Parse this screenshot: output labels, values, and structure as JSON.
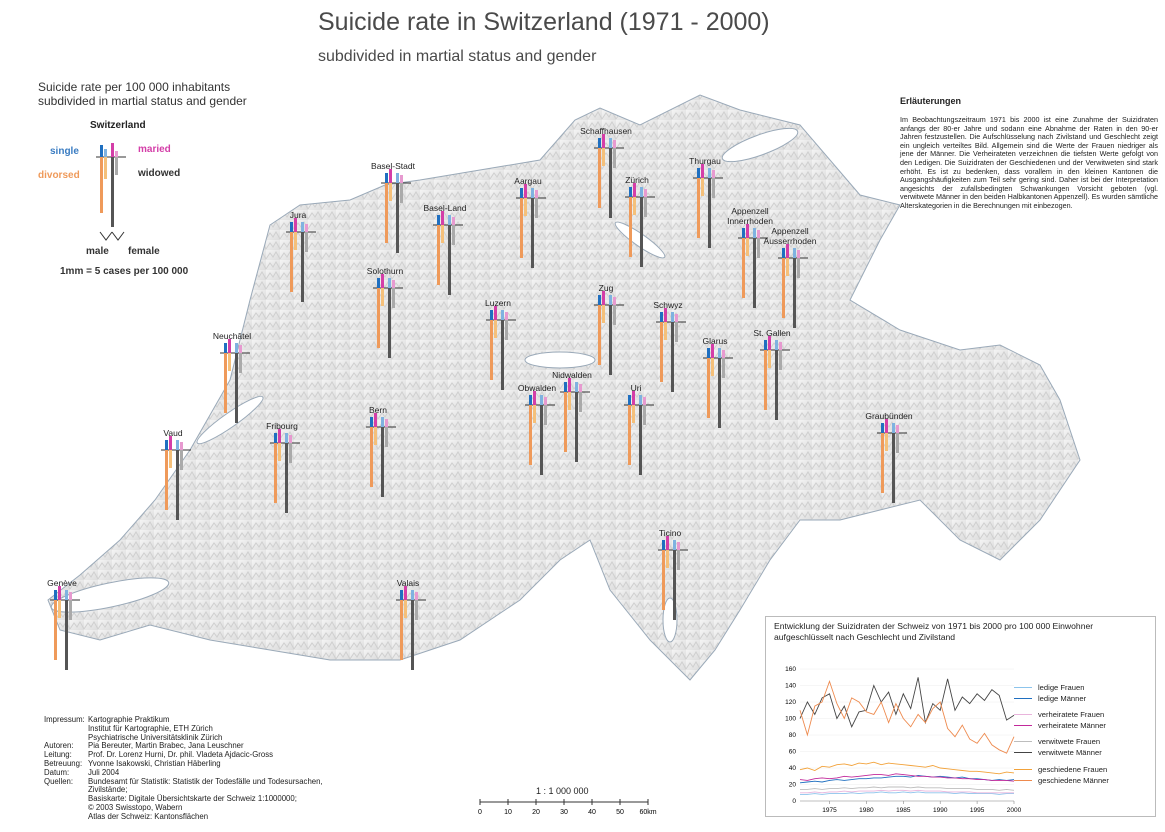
{
  "title": "Suicide rate in Switzerland (1971 - 2000)",
  "subtitle": "subdivided in martial status and gender",
  "legend": {
    "title_line1": "Suicide rate per 100 000 inhabitants",
    "title_line2": "subdivided in martial status and gender",
    "region": "Switzerland",
    "single": "single",
    "married": "maried",
    "divorced": "divorsed",
    "widowed": "widowed",
    "male": "male",
    "female": "female",
    "scale_note": "1mm = 5 cases per 100 000",
    "colors": {
      "single": "#1f6fc0",
      "married": "#d43ea8",
      "divorced": "#ef9a5a",
      "widowed": "#555555",
      "single_f": "#7fb2e0",
      "married_f": "#e79ad0",
      "divorced_f": "#f5c07a",
      "widowed_f": "#aaaaaa"
    }
  },
  "explanation": {
    "heading": "Erläuterungen",
    "text": "Im Beobachtungszeitraum 1971 bis 2000 ist eine Zunahme der Suizidraten anfangs der 80-er Jahre und sodann eine Abnahme der Raten in den 90-er Jahren festzustellen. Die Aufschlüsselung nach Zivilstand und Geschlecht zeigt ein ungleich verteiltes Bild. Allgemein sind die Werte der Frauen niedriger als jene der Männer. Die Verheirateten verzeichnen die tiefsten Werte gefolgt von den Ledigen. Die Suizidraten der Geschiedenen und der Verwitweten sind stark erhöht. Es ist zu bedenken, dass vorallem in den kleinen Kantonen die Ausgangshäufigkeiten zum Teil sehr gering sind. Daher ist bei der Interpretation angesichts der zufallsbedingten Schwankungen Vorsicht geboten (vgl. verwitwete Männer in den beiden Halbkantonen Appenzell). Es wurden sämtliche Alterskategorien in die Berechnungen mit einbezogen."
  },
  "cantons": [
    {
      "name": "Schaffhausen"
    },
    {
      "name": "Basel-Stadt"
    },
    {
      "name": "Aargau"
    },
    {
      "name": "Zürich"
    },
    {
      "name": "Thurgau"
    },
    {
      "name": "Basel-Land"
    },
    {
      "name": "Jura"
    },
    {
      "name": "Appenzell Innerrhoden"
    },
    {
      "name": "Appenzell Ausserrhoden"
    },
    {
      "name": "Solothurn"
    },
    {
      "name": "Zug"
    },
    {
      "name": "Luzern"
    },
    {
      "name": "Schwyz"
    },
    {
      "name": "Neuchâtel"
    },
    {
      "name": "Glarus"
    },
    {
      "name": "St. Gallen"
    },
    {
      "name": "Nidwalden"
    },
    {
      "name": "Obwalden"
    },
    {
      "name": "Uri"
    },
    {
      "name": "Bern"
    },
    {
      "name": "Vaud"
    },
    {
      "name": "Fribourg"
    },
    {
      "name": "Graubünden"
    },
    {
      "name": "Ticino"
    },
    {
      "name": "Genève"
    },
    {
      "name": "Valais"
    }
  ],
  "impressum": [
    {
      "key": "Impressum:",
      "value": "Kartographie Praktikum"
    },
    {
      "key": "",
      "value": "Institut für Kartographie, ETH Zürich"
    },
    {
      "key": "",
      "value": "Psychiatrische Universitätsklinik Zürich"
    },
    {
      "key": "Autoren:",
      "value": "Pia Bereuter, Martin Brabec, Jana Leuschner"
    },
    {
      "key": "Leitung:",
      "value": "Prof. Dr. Lorenz Hurni, Dr. phil. Vladeta Ajdacic-Gross"
    },
    {
      "key": "Betreuung:",
      "value": "Yvonne Isakowski, Christian Häberling"
    },
    {
      "key": "Datum:",
      "value": "Juli 2004"
    },
    {
      "key": "Quellen:",
      "value": "Bundesamt für Statistik: Statistik der Todesfälle und Todesursachen, Zivilstände;"
    },
    {
      "key": "",
      "value": "Basiskarte: Digitale Übersichtskarte der Schweiz 1:1000000;"
    },
    {
      "key": "",
      "value": "© 2003 Swisstopo, Wabern"
    },
    {
      "key": "",
      "value": "Atlas der Schweiz: Kantonsflächen"
    }
  ],
  "scale": {
    "label": "1 : 1 000 000",
    "ticks": [
      "0",
      "10",
      "20",
      "30",
      "40",
      "50",
      "60km"
    ]
  },
  "chart_data": {
    "type": "line",
    "title": "Entwicklung der Suizidraten der Schweiz von 1971 bis 2000 pro 100 000 Einwohner aufgeschlüsselt nach Geschlecht und Zivilstand",
    "x": [
      1971,
      1972,
      1973,
      1974,
      1975,
      1976,
      1977,
      1978,
      1979,
      1980,
      1981,
      1982,
      1983,
      1984,
      1985,
      1986,
      1987,
      1988,
      1989,
      1990,
      1991,
      1992,
      1993,
      1994,
      1995,
      1996,
      1997,
      1998,
      1999,
      2000
    ],
    "xticks": [
      "1975",
      "1980",
      "1985",
      "1990",
      "1995",
      "2000"
    ],
    "yticks": [
      "0",
      "20",
      "40",
      "60",
      "80",
      "100",
      "120",
      "140",
      "160"
    ],
    "ylim": [
      0,
      160
    ],
    "series": [
      {
        "name": "ledige Frauen",
        "color": "#8cc4ec",
        "values": [
          8,
          8,
          9,
          8,
          9,
          9,
          9,
          10,
          9,
          10,
          10,
          11,
          10,
          10,
          11,
          10,
          11,
          10,
          10,
          10,
          10,
          9,
          10,
          9,
          9,
          9,
          9,
          8,
          9,
          9
        ]
      },
      {
        "name": "ledige Männer",
        "color": "#1f6fc0",
        "values": [
          22,
          23,
          24,
          23,
          25,
          26,
          25,
          26,
          27,
          27,
          28,
          28,
          29,
          30,
          30,
          29,
          31,
          30,
          29,
          30,
          29,
          28,
          29,
          27,
          27,
          26,
          25,
          26,
          25,
          26
        ]
      },
      {
        "name": "verheiratete Frauen",
        "color": "#e9b4dc",
        "values": [
          10,
          10,
          11,
          10,
          11,
          11,
          12,
          11,
          12,
          12,
          12,
          13,
          12,
          13,
          13,
          12,
          13,
          12,
          12,
          12,
          11,
          11,
          11,
          11,
          10,
          10,
          10,
          10,
          10,
          10
        ]
      },
      {
        "name": "verheiratete Männer",
        "color": "#c2299b",
        "values": [
          26,
          25,
          27,
          28,
          27,
          28,
          30,
          29,
          30,
          31,
          32,
          32,
          31,
          33,
          32,
          31,
          30,
          30,
          29,
          29,
          28,
          28,
          27,
          27,
          26,
          26,
          25,
          25,
          25,
          24
        ]
      },
      {
        "name": "verwitwete Frauen",
        "color": "#bdbdbd",
        "values": [
          14,
          14,
          15,
          14,
          15,
          15,
          16,
          15,
          16,
          16,
          17,
          16,
          17,
          17,
          17,
          16,
          17,
          16,
          16,
          16,
          15,
          15,
          15,
          15,
          14,
          14,
          14,
          13,
          14,
          13
        ]
      },
      {
        "name": "verwitwete Männer",
        "color": "#444444",
        "values": [
          100,
          120,
          105,
          125,
          130,
          100,
          115,
          90,
          108,
          110,
          140,
          120,
          132,
          105,
          130,
          112,
          150,
          95,
          118,
          110,
          148,
          110,
          126,
          118,
          130,
          122,
          135,
          128,
          98,
          104
        ]
      },
      {
        "name": "geschiedene Frauen",
        "color": "#f2a23a",
        "values": [
          38,
          40,
          37,
          42,
          41,
          44,
          45,
          43,
          46,
          45,
          47,
          44,
          46,
          45,
          44,
          43,
          42,
          41,
          43,
          40,
          39,
          38,
          37,
          36,
          36,
          35,
          34,
          33,
          35,
          34
        ]
      },
      {
        "name": "geschiedene Männer",
        "color": "#ee8a4e",
        "values": [
          110,
          80,
          115,
          120,
          145,
          118,
          100,
          125,
          120,
          108,
          105,
          120,
          95,
          118,
          100,
          90,
          105,
          95,
          112,
          120,
          88,
          78,
          92,
          75,
          70,
          82,
          68,
          62,
          58,
          78
        ]
      }
    ]
  }
}
